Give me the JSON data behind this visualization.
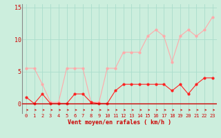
{
  "x": [
    0,
    1,
    2,
    3,
    4,
    5,
    6,
    7,
    8,
    9,
    10,
    11,
    12,
    13,
    14,
    15,
    16,
    17,
    18,
    19,
    20,
    21,
    22,
    23
  ],
  "vent_moyen": [
    1,
    0,
    1.5,
    0,
    0,
    0,
    1.5,
    1.5,
    0.2,
    0,
    0,
    2,
    3,
    3,
    3,
    3,
    3,
    3,
    2,
    3,
    1.5,
    3,
    4,
    4
  ],
  "rafales": [
    5.5,
    5.5,
    3,
    0.2,
    0.2,
    5.5,
    5.5,
    5.5,
    0.2,
    0.2,
    5.5,
    5.5,
    8,
    8,
    8,
    10.5,
    11.5,
    10.5,
    6.5,
    10.5,
    11.5,
    10.5,
    11.5,
    13.5
  ],
  "line_color_moyen": "#ff2222",
  "line_color_rafales": "#ffaaaa",
  "bg_color": "#cceedd",
  "grid_color": "#aaddcc",
  "xlabel": "Vent moyen/en rafales ( km/h )",
  "yticks": [
    0,
    5,
    10,
    15
  ],
  "ylim": [
    -1.5,
    15.5
  ],
  "xlim": [
    -0.5,
    23.5
  ],
  "marker_size": 2,
  "line_width": 0.8,
  "tick_fontsize": 5,
  "xlabel_fontsize": 6
}
